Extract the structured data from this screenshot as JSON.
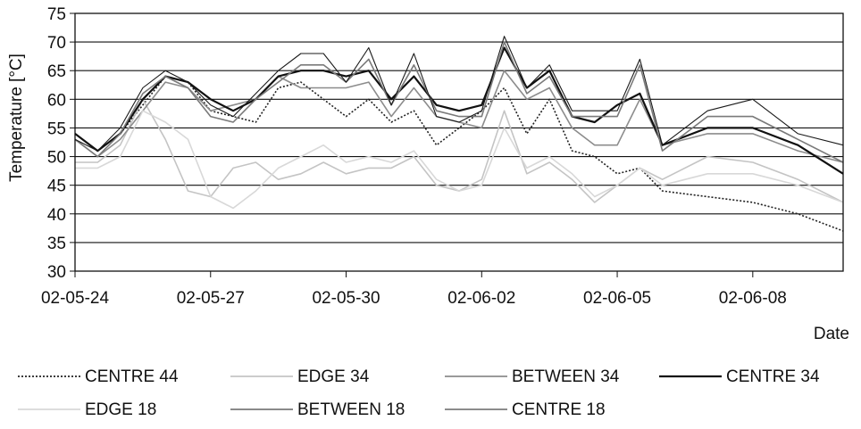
{
  "chart_data": {
    "type": "line",
    "title": "",
    "xlabel": "Date",
    "ylabel": "Temperature [°C]",
    "ylim": [
      30,
      75
    ],
    "yticks": [
      30,
      35,
      40,
      45,
      50,
      55,
      60,
      65,
      70,
      75
    ],
    "xlim": [
      "02-05-24",
      "02-06-10"
    ],
    "xticks": [
      "02-05-24",
      "02-05-27",
      "02-05-30",
      "02-06-02",
      "02-06-05",
      "02-06-08"
    ],
    "grid": "horizontal",
    "legend_position": "bottom",
    "series": [
      {
        "name": "CENTRE 44",
        "color": "#222222",
        "dash": "dotted",
        "x": [
          "02-05-24 00:00",
          "02-05-24 12:00",
          "02-05-25 00:00",
          "02-05-26 00:00",
          "02-05-26 12:00",
          "02-05-27 00:00",
          "02-05-28 00:00",
          "02-05-28 12:00",
          "02-05-29 00:00",
          "02-05-29 12:00",
          "02-05-30 00:00",
          "02-05-30 12:00",
          "02-05-31 00:00",
          "02-05-31 12:00",
          "02-06-01 00:00",
          "02-06-01 12:00",
          "02-06-02 00:00",
          "02-06-02 12:00",
          "02-06-03 00:00",
          "02-06-03 12:00",
          "02-06-04 00:00",
          "02-06-04 12:00",
          "02-06-05 00:00",
          "02-06-05 12:00",
          "02-06-06 00:00",
          "02-06-07 00:00",
          "02-06-08 00:00",
          "02-06-09 00:00",
          "02-06-10 00:00"
        ],
        "y": [
          54,
          51,
          54,
          64,
          63,
          58,
          56,
          62,
          63,
          60,
          57,
          60,
          56,
          58,
          52,
          55,
          58,
          62,
          54,
          60,
          51,
          50,
          47,
          48,
          44,
          43,
          42,
          40,
          37
        ]
      },
      {
        "name": "EDGE 34",
        "color": "#c4c4c4",
        "dash": "solid",
        "x": [
          "02-05-24 00:00",
          "02-05-24 12:00",
          "02-05-25 00:00",
          "02-05-25 12:00",
          "02-05-26 00:00",
          "02-05-26 12:00",
          "02-05-27 00:00",
          "02-05-27 12:00",
          "02-05-28 00:00",
          "02-05-28 12:00",
          "02-05-29 00:00",
          "02-05-29 12:00",
          "02-05-30 00:00",
          "02-05-30 12:00",
          "02-05-31 00:00",
          "02-05-31 12:00",
          "02-06-01 00:00",
          "02-06-01 12:00",
          "02-06-02 00:00",
          "02-06-02 12:00",
          "02-06-03 00:00",
          "02-06-03 12:00",
          "02-06-04 00:00",
          "02-06-04 12:00",
          "02-06-05 00:00",
          "02-06-05 12:00",
          "02-06-06 00:00",
          "02-06-07 00:00",
          "02-06-08 00:00",
          "02-06-09 00:00",
          "02-06-10 00:00"
        ],
        "y": [
          49,
          49,
          52,
          60,
          53,
          44,
          43,
          48,
          49,
          46,
          47,
          49,
          47,
          48,
          48,
          50,
          45,
          44,
          46,
          58,
          47,
          49,
          46,
          42,
          45,
          48,
          46,
          50,
          49,
          46,
          42
        ]
      },
      {
        "name": "BETWEEN 34",
        "color": "#8c8c8c",
        "dash": "solid",
        "x": [
          "02-05-24 00:00",
          "02-05-24 12:00",
          "02-05-25 00:00",
          "02-05-25 12:00",
          "02-05-26 00:00",
          "02-05-26 12:00",
          "02-05-27 00:00",
          "02-05-27 12:00",
          "02-05-28 00:00",
          "02-05-28 12:00",
          "02-05-29 00:00",
          "02-05-29 12:00",
          "02-05-30 00:00",
          "02-05-30 12:00",
          "02-05-31 00:00",
          "02-05-31 12:00",
          "02-06-01 00:00",
          "02-06-01 12:00",
          "02-06-02 00:00",
          "02-06-02 12:00",
          "02-06-03 00:00",
          "02-06-03 12:00",
          "02-06-04 00:00",
          "02-06-04 12:00",
          "02-06-05 00:00",
          "02-06-05 12:00",
          "02-06-06 00:00",
          "02-06-07 00:00",
          "02-06-08 00:00",
          "02-06-09 00:00",
          "02-06-10 00:00"
        ],
        "y": [
          53,
          50,
          53,
          58,
          63,
          62,
          58,
          59,
          60,
          64,
          62,
          62,
          62,
          63,
          57,
          62,
          57,
          56,
          55,
          65,
          60,
          62,
          55,
          52,
          52,
          60,
          52,
          54,
          54,
          51,
          49
        ]
      },
      {
        "name": "CENTRE 34",
        "color": "#111111",
        "dash": "solid",
        "width": 2.2,
        "x": [
          "02-05-24 00:00",
          "02-05-24 12:00",
          "02-05-25 00:00",
          "02-05-25 12:00",
          "02-05-26 00:00",
          "02-05-26 12:00",
          "02-05-27 00:00",
          "02-05-27 12:00",
          "02-05-28 00:00",
          "02-05-28 12:00",
          "02-05-29 00:00",
          "02-05-29 12:00",
          "02-05-30 00:00",
          "02-05-30 12:00",
          "02-05-31 00:00",
          "02-05-31 12:00",
          "02-06-01 00:00",
          "02-06-01 12:00",
          "02-06-02 00:00",
          "02-06-02 12:00",
          "02-06-03 00:00",
          "02-06-03 12:00",
          "02-06-04 00:00",
          "02-06-04 12:00",
          "02-06-05 00:00",
          "02-06-05 12:00",
          "02-06-06 00:00",
          "02-06-07 00:00",
          "02-06-08 00:00",
          "02-06-09 00:00",
          "02-06-10 00:00"
        ],
        "y": [
          54,
          51,
          54,
          60,
          64,
          63,
          60,
          58,
          60,
          64,
          65,
          65,
          64,
          65,
          60,
          64,
          59,
          58,
          59,
          69,
          62,
          65,
          57,
          56,
          59,
          61,
          52,
          55,
          55,
          52,
          47
        ]
      },
      {
        "name": "EDGE 18",
        "color": "#d8d8d8",
        "dash": "solid",
        "x": [
          "02-05-24 00:00",
          "02-05-24 12:00",
          "02-05-25 00:00",
          "02-05-25 12:00",
          "02-05-26 00:00",
          "02-05-26 12:00",
          "02-05-27 00:00",
          "02-05-27 12:00",
          "02-05-28 00:00",
          "02-05-28 12:00",
          "02-05-29 00:00",
          "02-05-29 12:00",
          "02-05-30 00:00",
          "02-05-30 12:00",
          "02-05-31 00:00",
          "02-05-31 12:00",
          "02-06-01 00:00",
          "02-06-01 12:00",
          "02-06-02 00:00",
          "02-06-02 12:00",
          "02-06-03 00:00",
          "02-06-03 12:00",
          "02-06-04 00:00",
          "02-06-04 12:00",
          "02-06-05 00:00",
          "02-06-05 12:00",
          "02-06-06 00:00",
          "02-06-07 00:00",
          "02-06-08 00:00",
          "02-06-09 00:00",
          "02-06-10 00:00"
        ],
        "y": [
          48,
          48,
          50,
          58,
          56,
          53,
          43,
          41,
          44,
          48,
          50,
          52,
          49,
          50,
          49,
          51,
          46,
          44,
          45,
          55,
          48,
          50,
          47,
          43,
          45,
          48,
          45,
          47,
          47,
          45,
          42
        ]
      },
      {
        "name": "BETWEEN 18",
        "color": "#7a7a7a",
        "dash": "solid",
        "x": [
          "02-05-24 00:00",
          "02-05-24 12:00",
          "02-05-25 00:00",
          "02-05-25 12:00",
          "02-05-26 00:00",
          "02-05-26 12:00",
          "02-05-27 00:00",
          "02-05-27 12:00",
          "02-05-28 00:00",
          "02-05-28 12:00",
          "02-05-29 00:00",
          "02-05-29 12:00",
          "02-05-30 00:00",
          "02-05-30 12:00",
          "02-05-31 00:00",
          "02-05-31 12:00",
          "02-06-01 00:00",
          "02-06-01 12:00",
          "02-06-02 00:00",
          "02-06-02 12:00",
          "02-06-03 00:00",
          "02-06-03 12:00",
          "02-06-04 00:00",
          "02-06-04 12:00",
          "02-06-05 00:00",
          "02-06-05 12:00",
          "02-06-06 00:00",
          "02-06-07 00:00",
          "02-06-08 00:00",
          "02-06-09 00:00",
          "02-06-10 00:00"
        ],
        "y": [
          53,
          50,
          54,
          61,
          64,
          62,
          57,
          56,
          60,
          63,
          66,
          66,
          63,
          67,
          59,
          66,
          58,
          57,
          57,
          70,
          61,
          64,
          57,
          57,
          57,
          66,
          51,
          57,
          57,
          53,
          49
        ]
      },
      {
        "name": "CENTRE 18",
        "color": "#1a1a1a",
        "dash": "solid",
        "width": 1.1,
        "x": [
          "02-05-24 00:00",
          "02-05-24 12:00",
          "02-05-25 00:00",
          "02-05-25 12:00",
          "02-05-26 00:00",
          "02-05-26 12:00",
          "02-05-27 00:00",
          "02-05-27 12:00",
          "02-05-28 00:00",
          "02-05-28 12:00",
          "02-05-29 00:00",
          "02-05-29 12:00",
          "02-05-30 00:00",
          "02-05-30 12:00",
          "02-05-31 00:00",
          "02-05-31 12:00",
          "02-06-01 00:00",
          "02-06-01 12:00",
          "02-06-02 00:00",
          "02-06-02 12:00",
          "02-06-03 00:00",
          "02-06-03 12:00",
          "02-06-04 00:00",
          "02-06-04 12:00",
          "02-06-05 00:00",
          "02-06-05 12:00",
          "02-06-06 00:00",
          "02-06-07 00:00",
          "02-06-08 00:00",
          "02-06-09 00:00",
          "02-06-10 00:00"
        ],
        "y": [
          53,
          51,
          55,
          62,
          65,
          63,
          59,
          57,
          61,
          65,
          68,
          68,
          63,
          69,
          59,
          68,
          57,
          56,
          58,
          71,
          62,
          66,
          58,
          58,
          58,
          67,
          52,
          58,
          60,
          54,
          52
        ]
      }
    ]
  }
}
